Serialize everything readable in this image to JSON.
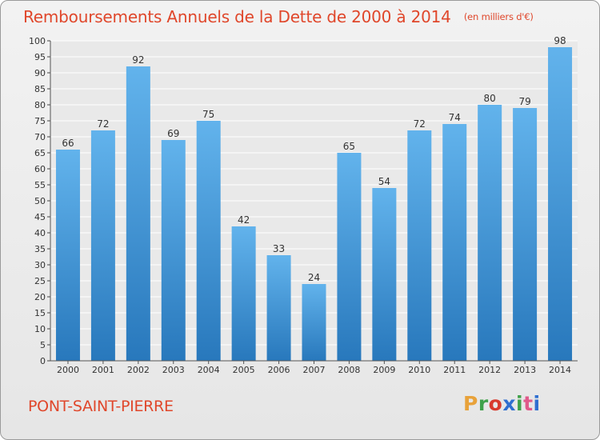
{
  "title": {
    "main": "Remboursements Annuels de la Dette de 2000 à 2014",
    "sub": "(en milliers d'€)"
  },
  "commune": "PONT-SAINT-PIERRE",
  "logo": {
    "text": "Proxiti",
    "colors": [
      "#e8a23a",
      "#3fa14a",
      "#d83a2e",
      "#2f6fd0",
      "#3fa14a",
      "#e05a8a",
      "#2f6fd0"
    ]
  },
  "colors": {
    "accent": "#e0472b",
    "bar_light": "#62b3ec",
    "bar_dark": "#2878bc"
  },
  "chart_data": {
    "type": "bar",
    "categories": [
      "2000",
      "2001",
      "2002",
      "2003",
      "2004",
      "2005",
      "2006",
      "2007",
      "2008",
      "2009",
      "2010",
      "2011",
      "2012",
      "2013",
      "2014"
    ],
    "values": [
      66,
      72,
      92,
      69,
      75,
      42,
      33,
      24,
      65,
      54,
      72,
      74,
      80,
      79,
      98
    ],
    "ylim": [
      0,
      100
    ],
    "ytick_step": 5,
    "grid": true,
    "xlabel": "",
    "ylabel": ""
  }
}
